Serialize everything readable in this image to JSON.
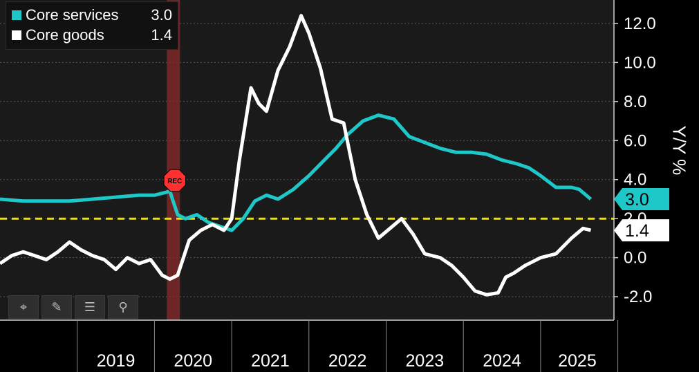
{
  "legend": {
    "items": [
      {
        "name": "Core services",
        "value": "3.0",
        "color": "#1fc8c8"
      },
      {
        "name": "Core goods",
        "value": "1.4",
        "color": "#ffffff"
      }
    ]
  },
  "toolbar": {
    "tools": [
      {
        "icon": "crosshair-icon",
        "glyph": "⌖"
      },
      {
        "icon": "pencil-icon",
        "glyph": "✎"
      },
      {
        "icon": "table-icon",
        "glyph": "☰"
      },
      {
        "icon": "magnifier-icon",
        "glyph": "⚲"
      }
    ]
  },
  "recession_badge": "REC",
  "colors": {
    "background": "#1a1a1a",
    "services": "#1fc8c8",
    "goods": "#ffffff",
    "reference": "#f0e000",
    "recession": "#8b2a2a"
  },
  "chart_data": {
    "type": "line",
    "ylabel": "Y/Y %",
    "xlabel": "",
    "title": "",
    "ylim": [
      -3.2,
      13.2
    ],
    "xlim": [
      2018.0,
      2025.95
    ],
    "y_ticks": [
      "-2.0",
      "0.0",
      "2.0",
      "4.0",
      "6.0",
      "8.0",
      "10.0",
      "12.0"
    ],
    "x_tick_labels": [
      "2019",
      "2020",
      "2021",
      "2022",
      "2023",
      "2024",
      "2025"
    ],
    "grid": true,
    "legend_position": "top-left",
    "reference_line": {
      "value": 2.0,
      "style": "dashed"
    },
    "recession": {
      "start": 2020.16,
      "end": 2020.33
    },
    "series": [
      {
        "name": "Core services",
        "last_label": "3.0",
        "x": [
          2018.0,
          2018.3,
          2018.6,
          2018.9,
          2019.2,
          2019.5,
          2019.8,
          2020.0,
          2020.2,
          2020.3,
          2020.4,
          2020.55,
          2020.7,
          2020.85,
          2021.0,
          2021.15,
          2021.3,
          2021.45,
          2021.6,
          2021.8,
          2022.0,
          2022.2,
          2022.35,
          2022.5,
          2022.7,
          2022.9,
          2023.1,
          2023.3,
          2023.5,
          2023.7,
          2023.9,
          2024.1,
          2024.3,
          2024.5,
          2024.7,
          2024.85,
          2025.0,
          2025.2,
          2025.4,
          2025.5,
          2025.65
        ],
        "values": [
          3.0,
          2.9,
          2.9,
          2.9,
          3.0,
          3.1,
          3.2,
          3.2,
          3.4,
          2.2,
          2.0,
          2.2,
          1.8,
          1.6,
          1.4,
          2.0,
          2.9,
          3.2,
          3.0,
          3.5,
          4.2,
          5.0,
          5.6,
          6.3,
          7.0,
          7.3,
          7.1,
          6.2,
          5.9,
          5.6,
          5.4,
          5.4,
          5.3,
          5.0,
          4.8,
          4.6,
          4.2,
          3.6,
          3.6,
          3.5,
          3.0
        ]
      },
      {
        "name": "Core goods",
        "last_label": "1.4",
        "x": [
          2018.0,
          2018.15,
          2018.3,
          2018.45,
          2018.6,
          2018.75,
          2018.9,
          2019.05,
          2019.2,
          2019.35,
          2019.5,
          2019.65,
          2019.8,
          2019.95,
          2020.1,
          2020.2,
          2020.3,
          2020.45,
          2020.6,
          2020.75,
          2020.9,
          2021.0,
          2021.1,
          2021.25,
          2021.35,
          2021.45,
          2021.6,
          2021.75,
          2021.9,
          2022.0,
          2022.15,
          2022.3,
          2022.45,
          2022.6,
          2022.75,
          2022.9,
          2023.05,
          2023.2,
          2023.35,
          2023.5,
          2023.7,
          2023.85,
          2024.0,
          2024.15,
          2024.3,
          2024.45,
          2024.55,
          2024.65,
          2024.8,
          2025.0,
          2025.2,
          2025.4,
          2025.55,
          2025.65
        ],
        "values": [
          -0.3,
          0.1,
          0.3,
          0.1,
          -0.1,
          0.3,
          0.8,
          0.4,
          0.1,
          -0.1,
          -0.6,
          0.0,
          -0.3,
          -0.1,
          -0.9,
          -1.1,
          -0.9,
          0.9,
          1.4,
          1.7,
          1.4,
          2.0,
          5.0,
          8.7,
          7.9,
          7.5,
          9.6,
          10.8,
          12.4,
          11.5,
          9.7,
          7.1,
          6.9,
          4.0,
          2.2,
          1.0,
          1.5,
          2.0,
          1.2,
          0.2,
          0.0,
          -0.4,
          -1.0,
          -1.7,
          -1.9,
          -1.8,
          -1.0,
          -0.8,
          -0.4,
          0.0,
          0.2,
          1.0,
          1.5,
          1.4
        ]
      }
    ]
  }
}
